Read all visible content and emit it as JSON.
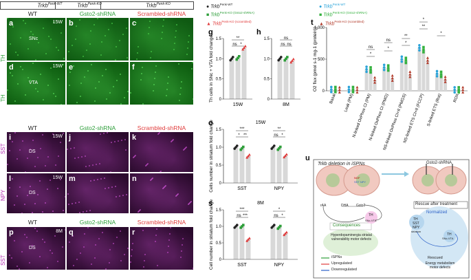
{
  "header": {
    "genotype_wt": "Trkb",
    "genotype_wt_sup": "Penk-WT",
    "genotype_ko1": "Trkb",
    "genotype_ko1_sup": "Penk-KO",
    "genotype_ko2": "Trkb",
    "genotype_ko2_sup": "Penk-KO"
  },
  "conditions": {
    "wt": "WT",
    "gsto2": "Gsto2-shRNA",
    "scrambled": "Scrambled-shRNA"
  },
  "micrographs": {
    "row_a": [
      "a",
      "b",
      "c"
    ],
    "row_d": [
      "d",
      "e",
      "f"
    ],
    "row_i": [
      "i",
      "j",
      "k"
    ],
    "row_l": [
      "l",
      "m",
      "n"
    ],
    "row_p": [
      "p",
      "q",
      "r"
    ],
    "age_15w": "15W",
    "age_8m": "8M",
    "region_snc": "SNc",
    "region_vta": "VTA",
    "region_ds": "DS",
    "stain_th": "TH",
    "stain_sst": "SST",
    "stain_npy": "NPY"
  },
  "legend": {
    "wt": "Trkb",
    "wt_sup": "Penk-WT",
    "gsto2": "Trkb",
    "gsto2_sup": "Penk-KO (Gsto2-shRNA)",
    "scr": "Trkb",
    "scr_sup": "Penk-KO (scrambled)"
  },
  "legend_t": {
    "wt": "Trkb",
    "wt_sup": "Penk-WT",
    "gsto2": "Trkb",
    "gsto2_sup": "Penk-KO (Gsto2-shRNA)",
    "scr": "Trkb",
    "scr_sup": "Penk-KO (scrambled)"
  },
  "colors": {
    "wt": "#222222",
    "gsto2": "#2e9e3a",
    "scrambled": "#e03b3b",
    "th_green": "#1c8a1c",
    "sst_magenta": "#8a1a8a",
    "bar_gray": "#d8d8d8",
    "t_wt": "#2aa3d9",
    "t_gsto2": "#35b13f",
    "t_scr": "#b13a2a"
  },
  "chart_data": [
    {
      "type": "bar",
      "panel": "g",
      "ylabel": "Th cells in SNc + VTA fold change",
      "categories": [
        "15W"
      ],
      "series": [
        {
          "name": "Trkb Penk-WT",
          "values": [
            1.0
          ]
        },
        {
          "name": "Trkb Penk-KO (Gsto2-shRNA)",
          "values": [
            1.02
          ]
        },
        {
          "name": "Trkb Penk-KO (scrambled)",
          "values": [
            1.27
          ]
        }
      ],
      "ylim": [
        0,
        1.5
      ],
      "yticks": [
        "0",
        "0.5",
        "1.0",
        "1.5"
      ],
      "annotations": [
        "**",
        "ns",
        "*"
      ]
    },
    {
      "type": "bar",
      "panel": "h",
      "categories": [
        "8M"
      ],
      "series": [
        {
          "name": "Trkb Penk-WT",
          "values": [
            1.0
          ]
        },
        {
          "name": "Trkb Penk-KO (Gsto2-shRNA)",
          "values": [
            1.0
          ]
        },
        {
          "name": "Trkb Penk-KO (scrambled)",
          "values": [
            0.95
          ]
        }
      ],
      "ylim": [
        0,
        1.5
      ],
      "yticks": [
        "0",
        "0.5",
        "1.0",
        "1.5"
      ],
      "annotations": [
        "ns",
        "ns",
        "ns"
      ]
    },
    {
      "type": "bar",
      "panel": "o",
      "title": "15W",
      "ylabel": "Cells number in striatum fold change",
      "categories": [
        "SST",
        "NPY"
      ],
      "series": [
        {
          "name": "Trkb Penk-WT",
          "values": [
            1.0,
            1.0
          ]
        },
        {
          "name": "Trkb Penk-KO (Gsto2-shRNA)",
          "values": [
            0.97,
            0.97
          ]
        },
        {
          "name": "Trkb Penk-KO (scrambled)",
          "values": [
            0.75,
            0.76
          ]
        }
      ],
      "ylim": [
        0,
        1.5
      ],
      "yticks": [
        "0",
        "0.5",
        "1.0",
        "1.5"
      ],
      "annotations": [
        "***",
        "*",
        "**",
        "**",
        "ns",
        "*"
      ]
    },
    {
      "type": "bar",
      "panel": "s",
      "title": "8M",
      "ylabel": "Cell number in striatum fold change",
      "categories": [
        "SST",
        "NPY"
      ],
      "series": [
        {
          "name": "Trkb Penk-WT",
          "values": [
            1.0,
            1.0
          ]
        },
        {
          "name": "Trkb Penk-KO (Gsto2-shRNA)",
          "values": [
            1.0,
            0.97
          ]
        },
        {
          "name": "Trkb Penk-KO (scrambled)",
          "values": [
            0.6,
            0.78
          ]
        }
      ],
      "ylim": [
        0,
        1.5
      ],
      "yticks": [
        "0",
        "0.5",
        "1.0",
        "1.5"
      ],
      "annotations": [
        "***",
        "ns",
        "***",
        "*",
        "ns",
        "*"
      ]
    },
    {
      "type": "bar",
      "panel": "t",
      "ylabel": "O2 flux (pmol s-1 mg-1 (protein))",
      "categories": [
        "Basal",
        "Leak (PM)",
        "N-linked OxPhos CI (PM)",
        "N-linked OxPhos CI (PMG)",
        "NS-linked OxPhos CI+II (PMGS)",
        "NS-linked ETS CI+II (FCCP)",
        "S-linked ETS (Rot)",
        "ROX"
      ],
      "series": [
        {
          "name": "Trkb Penk-WT",
          "values": [
            20,
            20,
            340,
            370,
            500,
            680,
            270,
            15
          ]
        },
        {
          "name": "Trkb Penk-KO (Gsto2-shRNA)",
          "values": [
            20,
            20,
            330,
            360,
            480,
            650,
            260,
            15
          ]
        },
        {
          "name": "Trkb Penk-KO (scrambled)",
          "values": [
            15,
            15,
            170,
            200,
            260,
            480,
            180,
            15
          ]
        }
      ],
      "ylim": [
        0,
        1000
      ],
      "yticks": [
        "0",
        "500",
        "1,000"
      ],
      "annotations": [
        "ns",
        "*",
        "ns",
        "*",
        "**",
        "*",
        "*",
        "**",
        "*"
      ]
    }
  ],
  "diagram": {
    "left_title": "Trkb deletion in iSPNs",
    "right_title": "Gsto2-shRNA",
    "rescue_label": "Rescue after treatment",
    "consequences_label": "Consequences",
    "consequences_text": "Hyperdopaminergia striatal vulnerability motor defects",
    "normalized_label": "Normalized",
    "rescued_label": "Rescued",
    "rescued_text": "Energy metabolism motor defects",
    "legend_ispns": "iSPNs",
    "legend_up": "Upregulated",
    "legend_down": "Downregulated",
    "node_raa": "rAA",
    "node_dha": "DHA",
    "node_gsto2": "Gsto2",
    "node_th": "TH",
    "node_th_sub": "SNc-VTA",
    "node_sst": "SST",
    "node_npy": "NPY",
    "node_th2": "TH",
    "node_th2_sub": "SNc-VTA",
    "node_striatum": "striatum",
    "node_th_striatum": "TH",
    "node_ngf": "NGF",
    "node_sst_npy": "SST NPY"
  }
}
